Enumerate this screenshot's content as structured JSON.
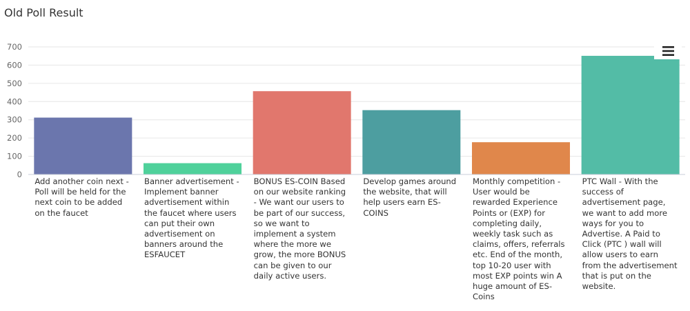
{
  "page": {
    "title": "Old Poll Result"
  },
  "menu": {
    "icon": "hamburger-menu-icon"
  },
  "chart_data": {
    "type": "bar",
    "title": "",
    "xlabel": "",
    "ylabel": "",
    "ylim": [
      0,
      700
    ],
    "yticks": [
      0,
      100,
      200,
      300,
      400,
      500,
      600,
      700
    ],
    "grid": true,
    "categories": [
      "Add another coin next - Poll will be held for the next coin to be added on the faucet",
      "Banner advertisement - Implement banner advertisement within the faucet where users can put their own advertisement on banners around the ESFAUCET",
      "BONUS ES-COIN Based on our website ranking - We want our users to be part of our success,  so we want to implement a system where the more we grow, the more BONUS can be given to our daily active users.",
      "Develop games around the website, that will help users earn ES-COINS",
      "Monthly competition - User would be rewarded Experience Points or (EXP) for completing daily, weekly task such as claims, offers, referrals etc. End of the month, top 10-20 user with most EXP points win A huge amount of ES-Coins",
      "PTC Wall - With the success of advertisement page, we want to add more ways for you to Advertise. A Paid to Click (PTC ) wall will allow users to earn from the advertisement that is put on the website."
    ],
    "values": [
      312,
      62,
      457,
      353,
      177,
      651
    ],
    "colors": [
      "#6b76ad",
      "#4fd19b",
      "#e1776d",
      "#4d9ea0",
      "#e0874b",
      "#53bca6"
    ]
  }
}
